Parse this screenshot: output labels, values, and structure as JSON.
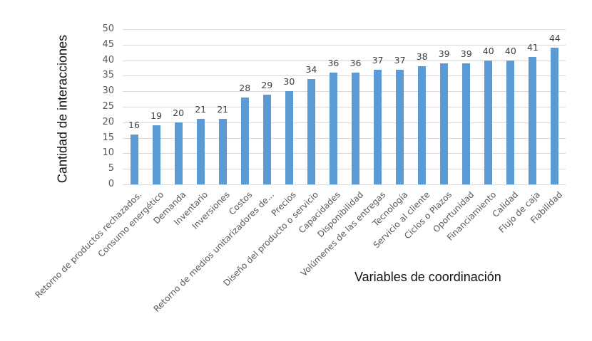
{
  "chart_data": {
    "type": "bar",
    "title": "",
    "xlabel": "Variables de coordinación",
    "ylabel": "Cantidad de interacciones",
    "ylim": [
      0,
      50
    ],
    "yticks": [
      0,
      5,
      10,
      15,
      20,
      25,
      30,
      35,
      40,
      45,
      50
    ],
    "grid": true,
    "legend": null,
    "bar_color": "#5b9bd5",
    "data_labels": true,
    "categories": [
      "Retorno de productos rechazados.",
      "Consumo energético",
      "Demanda",
      "Inventario",
      "Inversiones",
      "Costos",
      "Retorno de medios unitarizadores de...",
      "Precios",
      "Diseño del producto o servicio",
      "Capacidades",
      "Disponibilidad",
      "Volúmenes de las entregas",
      "Tecnología",
      "Servicio al cliente",
      "Ciclos o Plazos",
      "Oportunidad",
      "Financiamiento",
      "Calidad",
      "Flujo de caja",
      "Fiabilidad"
    ],
    "values": [
      16,
      19,
      20,
      21,
      21,
      28,
      29,
      30,
      34,
      36,
      36,
      37,
      37,
      38,
      39,
      39,
      40,
      40,
      41,
      44
    ]
  }
}
